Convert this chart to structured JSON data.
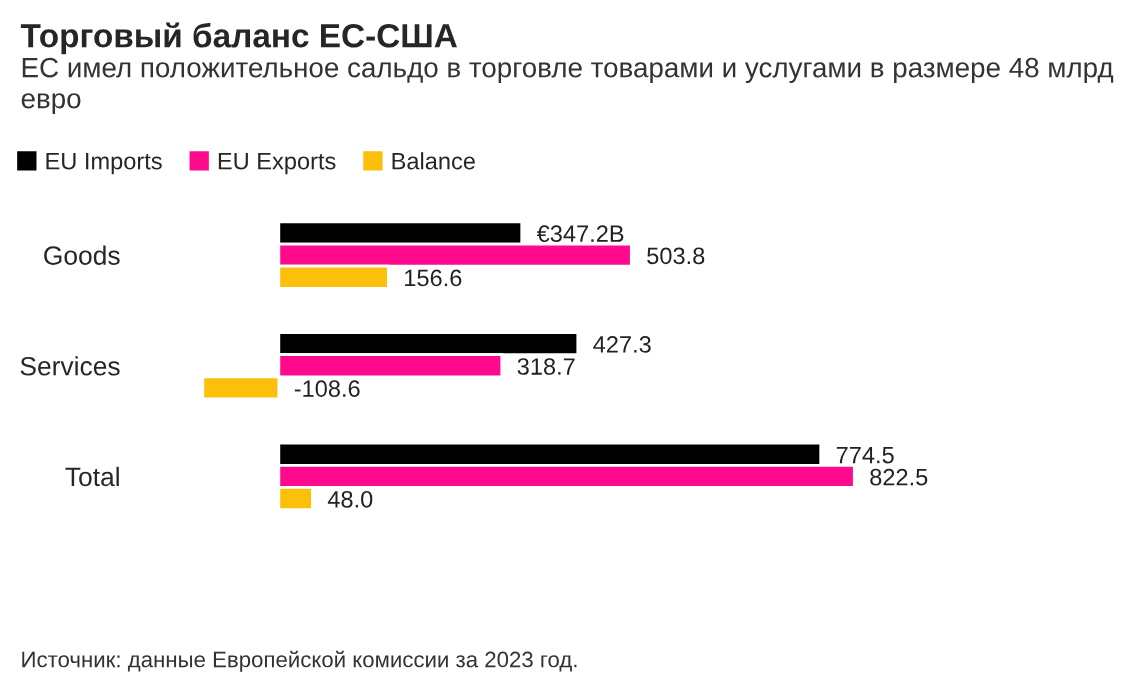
{
  "chart_data": {
    "type": "bar",
    "orientation": "horizontal",
    "title": "Торговый баланс ЕС-США",
    "subtitle": "ЕС имел положительное сальдо в торговле товарами и услугами в размере 48 млрд евро",
    "categories": [
      "Goods",
      "Services",
      "Total"
    ],
    "series": [
      {
        "name": "EU Imports",
        "color": "#000000",
        "values": [
          347.2,
          427.3,
          774.5
        ],
        "value_labels": [
          "€347.2B",
          "427.3",
          "774.5"
        ]
      },
      {
        "name": "EU Exports",
        "color": "#ff0a8c",
        "values": [
          503.8,
          318.7,
          822.5
        ],
        "value_labels": [
          "503.8",
          "318.7",
          "822.5"
        ]
      },
      {
        "name": "Balance",
        "color": "#fcbf0a",
        "values": [
          156.6,
          -108.6,
          48.0
        ],
        "value_labels": [
          "156.6",
          "-108.6",
          "48.0"
        ]
      }
    ],
    "xlim": [
      -115,
      830
    ],
    "tick_labels": "y",
    "legend": "top left",
    "grid": false,
    "annotations": [
      "Источник: данные Европейской комиссии за 2023 год."
    ]
  }
}
